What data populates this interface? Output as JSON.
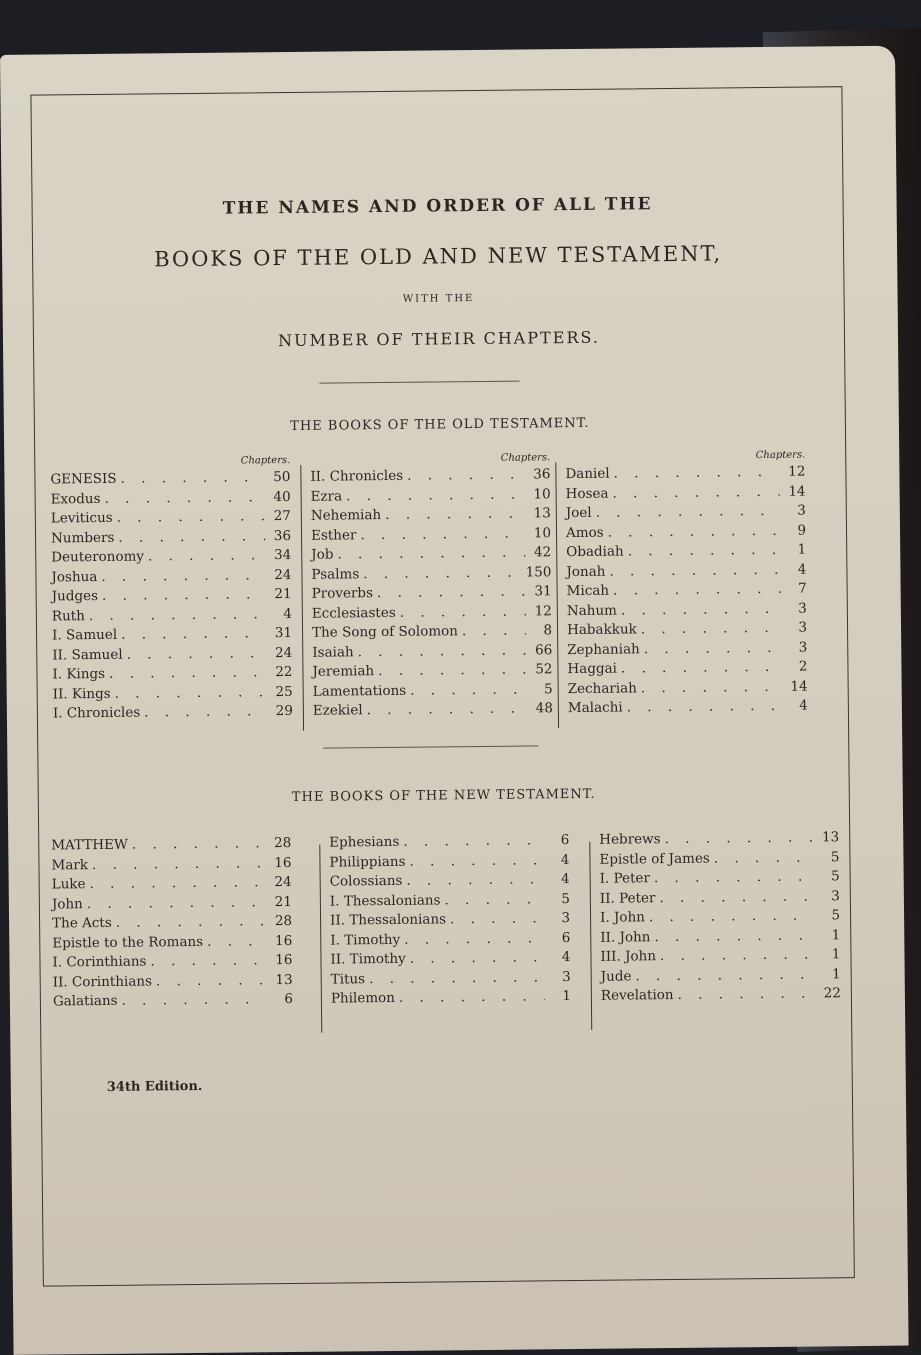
{
  "title_lines": [
    "THE NAMES AND ORDER OF ALL THE",
    "BOOKS OF THE OLD AND NEW TESTAMENT,",
    "WITH THE",
    "NUMBER OF THEIR CHAPTERS."
  ],
  "chapters_label": "Chapters.",
  "old_testament": {
    "heading": "THE BOOKS OF THE OLD TESTAMENT.",
    "columns": [
      [
        {
          "name": "GENESIS",
          "ch": "50"
        },
        {
          "name": "Exodus",
          "ch": "40"
        },
        {
          "name": "Leviticus",
          "ch": "27"
        },
        {
          "name": "Numbers",
          "ch": "36"
        },
        {
          "name": "Deuteronomy",
          "ch": "34"
        },
        {
          "name": "Joshua",
          "ch": "24"
        },
        {
          "name": "Judges",
          "ch": "21"
        },
        {
          "name": "Ruth",
          "ch": "4"
        },
        {
          "name": "I. Samuel",
          "ch": "31"
        },
        {
          "name": "II. Samuel",
          "ch": "24"
        },
        {
          "name": "I. Kings",
          "ch": "22"
        },
        {
          "name": "II. Kings",
          "ch": "25"
        },
        {
          "name": "I. Chronicles",
          "ch": "29"
        }
      ],
      [
        {
          "name": "II. Chronicles",
          "ch": "36"
        },
        {
          "name": "Ezra",
          "ch": "10"
        },
        {
          "name": "Nehemiah",
          "ch": "13"
        },
        {
          "name": "Esther",
          "ch": "10"
        },
        {
          "name": "Job",
          "ch": "42"
        },
        {
          "name": "Psalms",
          "ch": "150"
        },
        {
          "name": "Proverbs",
          "ch": "31"
        },
        {
          "name": "Ecclesiastes",
          "ch": "12"
        },
        {
          "name": "The Song of Solomon",
          "ch": "8"
        },
        {
          "name": "Isaiah",
          "ch": "66"
        },
        {
          "name": "Jeremiah",
          "ch": "52"
        },
        {
          "name": "Lamentations",
          "ch": "5"
        },
        {
          "name": "Ezekiel",
          "ch": "48"
        }
      ],
      [
        {
          "name": "Daniel",
          "ch": "12"
        },
        {
          "name": "Hosea",
          "ch": "14"
        },
        {
          "name": "Joel",
          "ch": "3"
        },
        {
          "name": "Amos",
          "ch": "9"
        },
        {
          "name": "Obadiah",
          "ch": "1"
        },
        {
          "name": "Jonah",
          "ch": "4"
        },
        {
          "name": "Micah",
          "ch": "7"
        },
        {
          "name": "Nahum",
          "ch": "3"
        },
        {
          "name": "Habakkuk",
          "ch": "3"
        },
        {
          "name": "Zephaniah",
          "ch": "3"
        },
        {
          "name": "Haggai",
          "ch": "2"
        },
        {
          "name": "Zechariah",
          "ch": "14"
        },
        {
          "name": "Malachi",
          "ch": "4"
        }
      ]
    ]
  },
  "new_testament": {
    "heading": "THE BOOKS OF THE NEW TESTAMENT.",
    "columns": [
      [
        {
          "name": "MATTHEW",
          "ch": "28"
        },
        {
          "name": "Mark",
          "ch": "16"
        },
        {
          "name": "Luke",
          "ch": "24"
        },
        {
          "name": "John",
          "ch": "21"
        },
        {
          "name": "The Acts",
          "ch": "28"
        },
        {
          "name": "Epistle to the Romans",
          "ch": "16"
        },
        {
          "name": "I. Corinthians",
          "ch": "16"
        },
        {
          "name": "II. Corinthians",
          "ch": "13"
        },
        {
          "name": "Galatians",
          "ch": "6"
        }
      ],
      [
        {
          "name": "Ephesians",
          "ch": "6"
        },
        {
          "name": "Philippians",
          "ch": "4"
        },
        {
          "name": "Colossians",
          "ch": "4"
        },
        {
          "name": "I. Thessalonians",
          "ch": "5"
        },
        {
          "name": "II. Thessalonians",
          "ch": "3"
        },
        {
          "name": "I. Timothy",
          "ch": "6"
        },
        {
          "name": "II. Timothy",
          "ch": "4"
        },
        {
          "name": "Titus",
          "ch": "3"
        },
        {
          "name": "Philemon",
          "ch": "1"
        }
      ],
      [
        {
          "name": "Hebrews",
          "ch": "13"
        },
        {
          "name": "Epistle of James",
          "ch": "5"
        },
        {
          "name": "I. Peter",
          "ch": "5"
        },
        {
          "name": "II. Peter",
          "ch": "3"
        },
        {
          "name": "I. John",
          "ch": "5"
        },
        {
          "name": "II. John",
          "ch": "1"
        },
        {
          "name": "III. John",
          "ch": "1"
        },
        {
          "name": "Jude",
          "ch": "1"
        },
        {
          "name": "Revelation",
          "ch": "22"
        }
      ]
    ]
  },
  "edition": "34th Edition."
}
